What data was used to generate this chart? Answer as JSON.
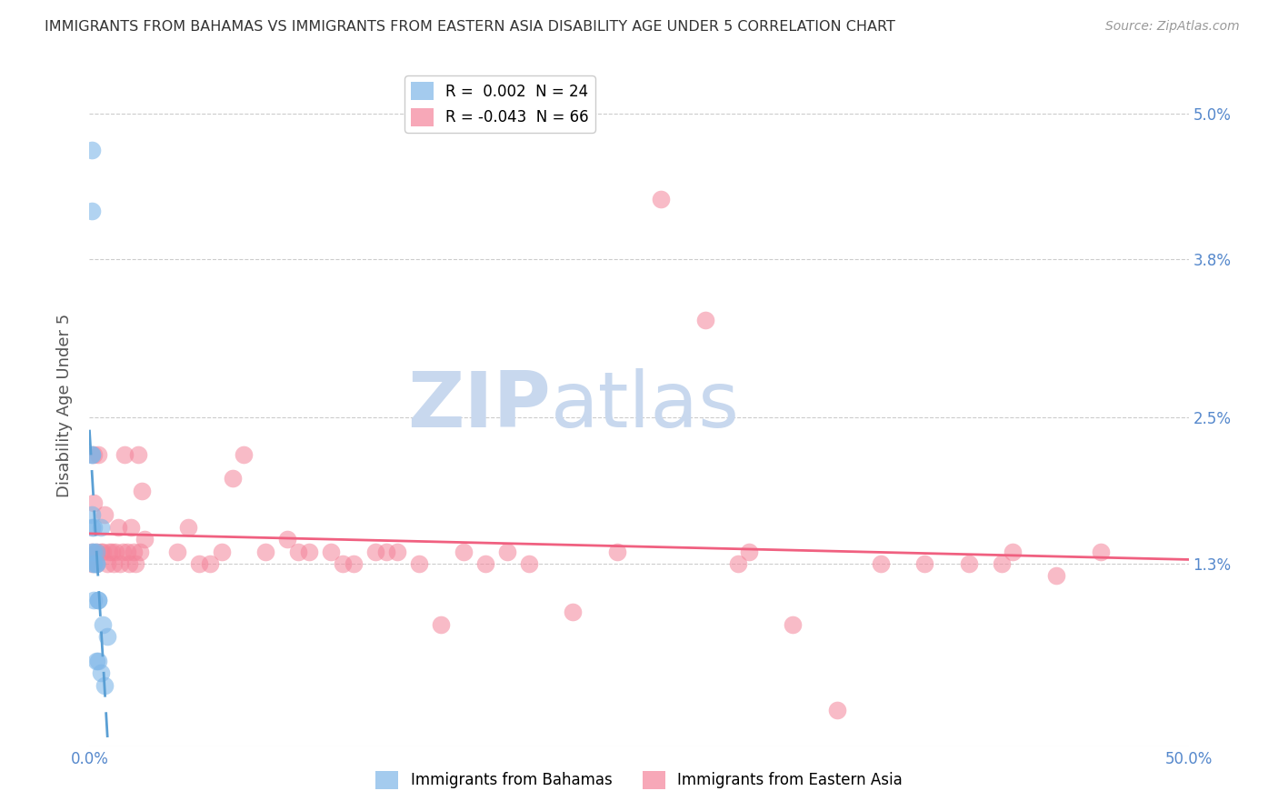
{
  "title": "IMMIGRANTS FROM BAHAMAS VS IMMIGRANTS FROM EASTERN ASIA DISABILITY AGE UNDER 5 CORRELATION CHART",
  "source": "Source: ZipAtlas.com",
  "ylabel": "Disability Age Under 5",
  "xlim": [
    0.0,
    0.5
  ],
  "ylim": [
    -0.002,
    0.054
  ],
  "yticks": [
    0.013,
    0.025,
    0.038,
    0.05
  ],
  "ytick_labels": [
    "1.3%",
    "2.5%",
    "3.8%",
    "5.0%"
  ],
  "xticks": [
    0.0,
    0.1,
    0.2,
    0.3,
    0.4,
    0.5
  ],
  "xtick_labels": [
    "0.0%",
    "",
    "",
    "",
    "",
    "50.0%"
  ],
  "bahamas_x": [
    0.001,
    0.001,
    0.001,
    0.001,
    0.001,
    0.001,
    0.001,
    0.002,
    0.002,
    0.002,
    0.002,
    0.002,
    0.003,
    0.003,
    0.003,
    0.003,
    0.004,
    0.004,
    0.004,
    0.005,
    0.005,
    0.006,
    0.007,
    0.008
  ],
  "bahamas_y": [
    0.047,
    0.042,
    0.022,
    0.022,
    0.017,
    0.016,
    0.014,
    0.016,
    0.014,
    0.013,
    0.01,
    0.013,
    0.014,
    0.013,
    0.005,
    0.013,
    0.01,
    0.005,
    0.01,
    0.004,
    0.016,
    0.008,
    0.003,
    0.007
  ],
  "eastern_asia_x": [
    0.001,
    0.001,
    0.002,
    0.002,
    0.003,
    0.003,
    0.004,
    0.005,
    0.006,
    0.007,
    0.008,
    0.009,
    0.01,
    0.011,
    0.012,
    0.013,
    0.014,
    0.015,
    0.016,
    0.017,
    0.018,
    0.019,
    0.02,
    0.021,
    0.022,
    0.023,
    0.024,
    0.025,
    0.04,
    0.05,
    0.06,
    0.07,
    0.08,
    0.09,
    0.1,
    0.11,
    0.12,
    0.13,
    0.14,
    0.15,
    0.16,
    0.17,
    0.18,
    0.19,
    0.2,
    0.22,
    0.24,
    0.26,
    0.28,
    0.3,
    0.32,
    0.34,
    0.36,
    0.38,
    0.4,
    0.42,
    0.44,
    0.46,
    0.045,
    0.055,
    0.065,
    0.095,
    0.115,
    0.135,
    0.295,
    0.415
  ],
  "eastern_asia_y": [
    0.014,
    0.013,
    0.022,
    0.018,
    0.014,
    0.013,
    0.022,
    0.014,
    0.014,
    0.017,
    0.013,
    0.014,
    0.014,
    0.013,
    0.014,
    0.016,
    0.013,
    0.014,
    0.022,
    0.014,
    0.013,
    0.016,
    0.014,
    0.013,
    0.022,
    0.014,
    0.019,
    0.015,
    0.014,
    0.013,
    0.014,
    0.022,
    0.014,
    0.015,
    0.014,
    0.014,
    0.013,
    0.014,
    0.014,
    0.013,
    0.008,
    0.014,
    0.013,
    0.014,
    0.013,
    0.009,
    0.014,
    0.043,
    0.033,
    0.014,
    0.008,
    0.001,
    0.013,
    0.013,
    0.013,
    0.014,
    0.012,
    0.014,
    0.016,
    0.013,
    0.02,
    0.014,
    0.013,
    0.014,
    0.013,
    0.013
  ],
  "bahamas_color": "#7eb6e8",
  "eastern_asia_color": "#f4849a",
  "bahamas_line_color": "#5a9fd4",
  "eastern_asia_line_color": "#f06080",
  "background_color": "#ffffff",
  "grid_color": "#cccccc",
  "title_color": "#333333",
  "axis_label_color": "#555555",
  "tick_color": "#5588cc",
  "watermark_zip": "ZIP",
  "watermark_atlas": "atlas",
  "watermark_color_zip": "#c8d8ee",
  "watermark_color_atlas": "#c8d8ee"
}
